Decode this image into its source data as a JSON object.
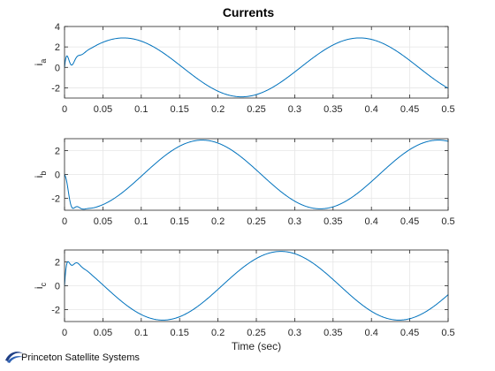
{
  "chart_data": {
    "type": "line",
    "title": "Currents",
    "xlabel": "Time (sec)",
    "x_ticks": [
      "0",
      "0.05",
      "0.1",
      "0.15",
      "0.2",
      "0.25",
      "0.3",
      "0.35",
      "0.4",
      "0.45",
      "0.5"
    ],
    "xlim": [
      0,
      0.5
    ],
    "grid": true,
    "line_color": "#0072BD",
    "axes_color": "#262626",
    "grid_color": "#e6e6e6",
    "panels": [
      {
        "ylabel_main": "i",
        "ylabel_sub": "a",
        "ylim": [
          -3,
          4
        ],
        "y_ticks": [
          4,
          2,
          0,
          -2
        ],
        "amplitude": 2.88,
        "frequency_hz": 3.25,
        "phase_deg": 0,
        "transient": {
          "amp": 1.5,
          "decay_s": 0.007,
          "freq_hz": 70
        },
        "series": [
          {
            "name": "i_a"
          }
        ]
      },
      {
        "ylabel_main": "i",
        "ylabel_sub": "b",
        "ylim": [
          -3,
          3
        ],
        "y_ticks": [
          2,
          0,
          -2
        ],
        "amplitude": 2.88,
        "frequency_hz": 3.25,
        "phase_deg": -120,
        "transient": {
          "amp": 1.2,
          "decay_s": 0.007,
          "freq_hz": 70
        },
        "series": [
          {
            "name": "i_b"
          }
        ]
      },
      {
        "ylabel_main": "i",
        "ylabel_sub": "c",
        "ylim": [
          -3,
          3
        ],
        "y_ticks": [
          2,
          0,
          -2
        ],
        "amplitude": 2.88,
        "frequency_hz": 3.25,
        "phase_deg": 120,
        "transient": {
          "amp": 1.0,
          "decay_s": 0.007,
          "freq_hz": 70
        },
        "series": [
          {
            "name": "i_c"
          }
        ]
      }
    ]
  },
  "logo": {
    "text": "Princeton Satellite Systems"
  }
}
